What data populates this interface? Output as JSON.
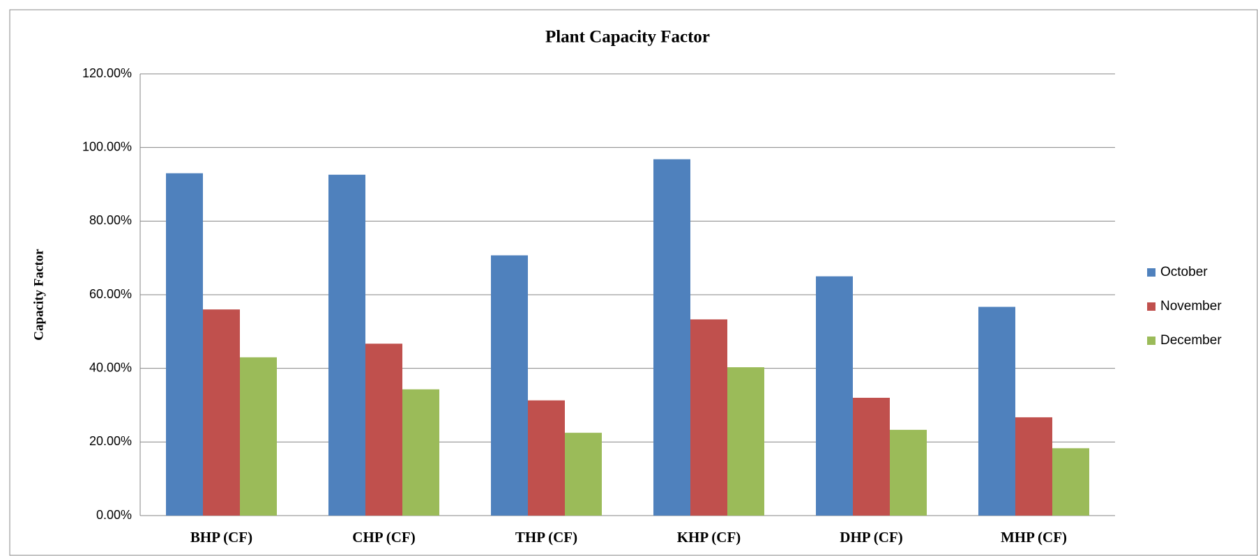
{
  "chart_data": {
    "type": "bar",
    "title": "Plant Capacity Factor",
    "y_label": "Capacity Factor",
    "categories": [
      "BHP (CF)",
      "CHP (CF)",
      "THP (CF)",
      "KHP (CF)",
      "DHP (CF)",
      "MHP (CF)"
    ],
    "series": [
      {
        "name": "October",
        "color": "#4f81bd",
        "values": [
          93.0,
          92.6,
          70.7,
          96.8,
          65.0,
          56.7
        ]
      },
      {
        "name": "November",
        "color": "#c0504d",
        "values": [
          56.0,
          46.7,
          31.3,
          53.3,
          32.0,
          26.7
        ]
      },
      {
        "name": "December",
        "color": "#9bbb59",
        "values": [
          43.0,
          34.3,
          22.5,
          40.3,
          23.3,
          18.3
        ]
      }
    ],
    "ylim": [
      0,
      120
    ],
    "yticks": [
      {
        "value": 0,
        "label": "0.00%"
      },
      {
        "value": 20,
        "label": "20.00%"
      },
      {
        "value": 40,
        "label": "40.00%"
      },
      {
        "value": 60,
        "label": "60.00%"
      },
      {
        "value": 80,
        "label": "80.00%"
      },
      {
        "value": 100,
        "label": "100.00%"
      },
      {
        "value": 120,
        "label": "120.00%"
      }
    ],
    "grid": true,
    "legend": "right"
  }
}
